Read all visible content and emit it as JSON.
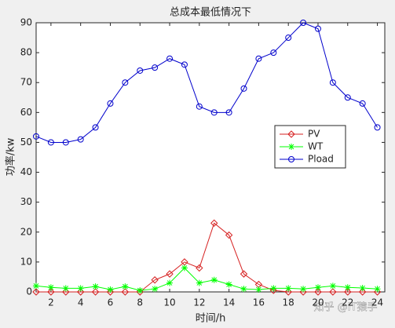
{
  "chart_data": {
    "type": "line",
    "title": "总成本最低情况下",
    "xlabel": "时间/h",
    "ylabel": "功率/kw",
    "x": [
      1,
      2,
      3,
      4,
      5,
      6,
      7,
      8,
      9,
      10,
      11,
      12,
      13,
      14,
      15,
      16,
      17,
      18,
      19,
      20,
      21,
      22,
      23,
      24
    ],
    "series": [
      {
        "name": "PV",
        "color": "#d62020",
        "marker": "diamond",
        "values": [
          0,
          0,
          0,
          0,
          0,
          0,
          0,
          0,
          4,
          6,
          10,
          8,
          23,
          19,
          6,
          2.5,
          0.5,
          0,
          0,
          0,
          0,
          0,
          0,
          0
        ]
      },
      {
        "name": "WT",
        "color": "#00ff00",
        "marker": "asterisk",
        "values": [
          2,
          1.5,
          1.2,
          1.2,
          1.8,
          0.8,
          1.8,
          0.5,
          1,
          3,
          8,
          3,
          4,
          2.5,
          1,
          0.8,
          1.2,
          1.2,
          1,
          1.5,
          2,
          1.5,
          1.3,
          1
        ]
      },
      {
        "name": "Pload",
        "color": "#0000cc",
        "marker": "circle",
        "values": [
          52,
          50,
          50,
          51,
          55,
          63,
          70,
          74,
          75,
          78,
          76,
          62,
          60,
          60,
          68,
          78,
          80,
          85,
          90,
          88,
          70,
          65,
          63,
          55
        ]
      }
    ],
    "xlim": [
      1,
      24.5
    ],
    "ylim": [
      0,
      90
    ],
    "xticks": [
      2,
      4,
      6,
      8,
      10,
      12,
      14,
      16,
      18,
      20,
      22,
      24
    ],
    "yticks": [
      0,
      10,
      20,
      30,
      40,
      50,
      60,
      70,
      80,
      90
    ],
    "legend": "right",
    "annotation": "知乎 @IT猿手"
  }
}
